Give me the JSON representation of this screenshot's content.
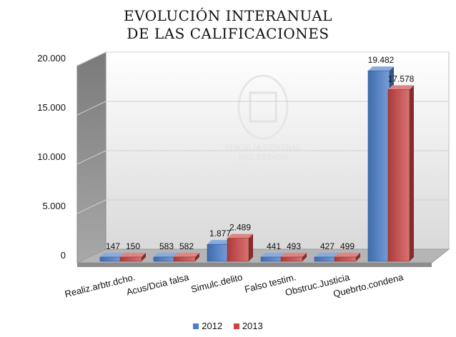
{
  "chart_data": {
    "type": "bar",
    "title_line1": "EVOLUCIÓN INTERANUAL",
    "title_line2": "DE LAS CALIFICACIONES",
    "categories": [
      "Realiz.arbtr.dcho.",
      "Acus/Dcia falsa",
      "Simulc.delito",
      "Falso testim.",
      "Obstruc.Justicia",
      "Quebrto.condena"
    ],
    "series": [
      {
        "name": "2012",
        "values": [
          147,
          583,
          1877,
          441,
          427,
          19482
        ],
        "labels": [
          "147",
          "583",
          "1.877",
          "441",
          "427",
          "19.482"
        ],
        "color": "#4a7ecb"
      },
      {
        "name": "2013",
        "values": [
          150,
          582,
          2489,
          493,
          499,
          17578
        ],
        "labels": [
          "150",
          "582",
          "2.489",
          "493",
          "499",
          "17.578"
        ],
        "color": "#cc4444"
      }
    ],
    "yticks": [
      "0",
      "5.000",
      "10.000",
      "15.000",
      "20.000"
    ],
    "ylim": [
      0,
      20000
    ],
    "grid": true,
    "legend_position": "bottom",
    "watermark_text": [
      "FISCALÍA GENERAL",
      "DEL ESTADO"
    ]
  }
}
